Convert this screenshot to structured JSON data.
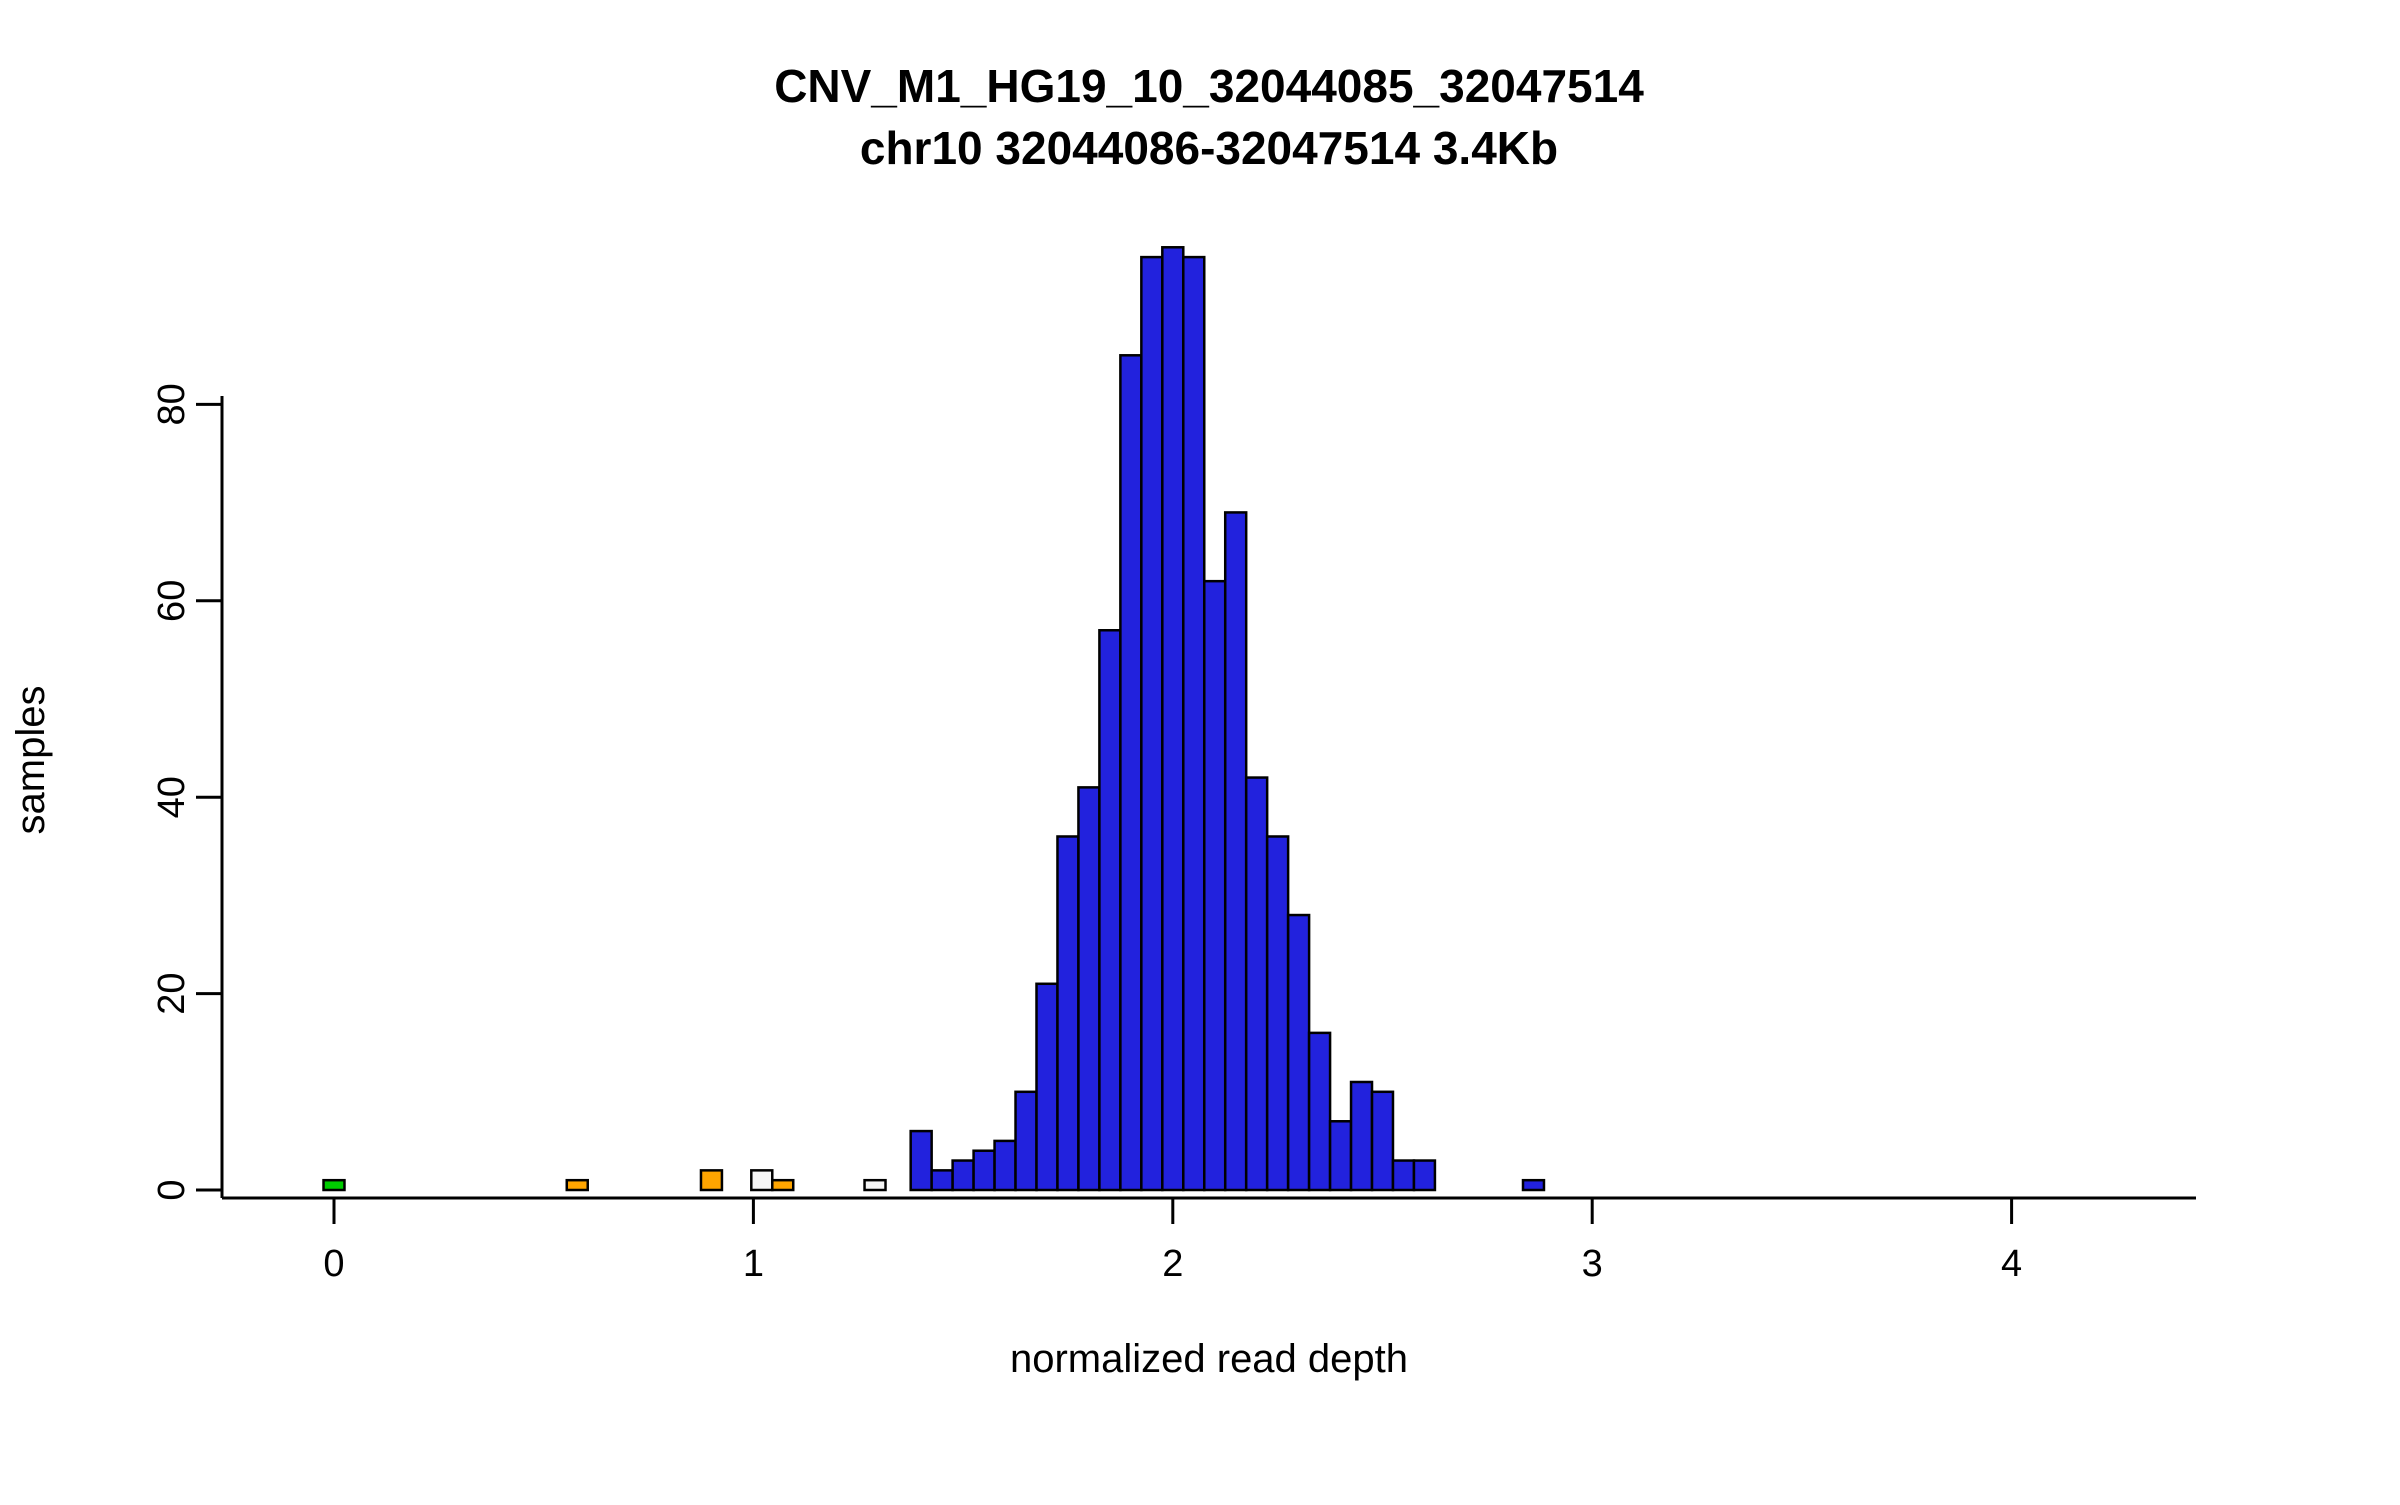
{
  "chart_data": {
    "type": "bar",
    "title": "CNV_M1_HG19_10_32044085_32047514",
    "subtitle": "chr10 32044086-32047514 3.4Kb",
    "xlabel": "normalized read depth",
    "ylabel": "samples",
    "x_ticks": [
      0,
      1,
      2,
      3,
      4
    ],
    "y_ticks": [
      0,
      20,
      40,
      60,
      80
    ],
    "xlim": [
      -0.27,
      4.44
    ],
    "ylim": [
      0,
      96
    ],
    "bin_width": 0.05,
    "grid": false,
    "legend": "none",
    "colors": {
      "blue": "#2222dd",
      "orange": "#ffa500",
      "green": "#00cd00",
      "white": "#f5f5f5",
      "border": "#000000"
    },
    "bars": [
      {
        "x": 0.0,
        "h": 1,
        "color": "green"
      },
      {
        "x": 0.58,
        "h": 1,
        "color": "orange"
      },
      {
        "x": 0.9,
        "h": 2,
        "color": "orange"
      },
      {
        "x": 1.02,
        "h": 2,
        "color": "white"
      },
      {
        "x": 1.07,
        "h": 1,
        "color": "orange"
      },
      {
        "x": 1.29,
        "h": 1,
        "color": "white"
      },
      {
        "x": 1.4,
        "h": 6,
        "color": "blue"
      },
      {
        "x": 1.45,
        "h": 2,
        "color": "blue"
      },
      {
        "x": 1.5,
        "h": 3,
        "color": "blue"
      },
      {
        "x": 1.55,
        "h": 4,
        "color": "blue"
      },
      {
        "x": 1.6,
        "h": 5,
        "color": "blue"
      },
      {
        "x": 1.65,
        "h": 10,
        "color": "blue"
      },
      {
        "x": 1.7,
        "h": 21,
        "color": "blue"
      },
      {
        "x": 1.75,
        "h": 36,
        "color": "blue"
      },
      {
        "x": 1.8,
        "h": 41,
        "color": "blue"
      },
      {
        "x": 1.85,
        "h": 57,
        "color": "blue"
      },
      {
        "x": 1.9,
        "h": 85,
        "color": "blue"
      },
      {
        "x": 1.95,
        "h": 95,
        "color": "blue"
      },
      {
        "x": 2.0,
        "h": 96,
        "color": "blue"
      },
      {
        "x": 2.05,
        "h": 95,
        "color": "blue"
      },
      {
        "x": 2.1,
        "h": 62,
        "color": "blue"
      },
      {
        "x": 2.15,
        "h": 69,
        "color": "blue"
      },
      {
        "x": 2.2,
        "h": 42,
        "color": "blue"
      },
      {
        "x": 2.25,
        "h": 36,
        "color": "blue"
      },
      {
        "x": 2.3,
        "h": 28,
        "color": "blue"
      },
      {
        "x": 2.35,
        "h": 16,
        "color": "blue"
      },
      {
        "x": 2.4,
        "h": 7,
        "color": "blue"
      },
      {
        "x": 2.45,
        "h": 11,
        "color": "blue"
      },
      {
        "x": 2.5,
        "h": 10,
        "color": "blue"
      },
      {
        "x": 2.55,
        "h": 3,
        "color": "blue"
      },
      {
        "x": 2.6,
        "h": 3,
        "color": "blue"
      },
      {
        "x": 2.86,
        "h": 1,
        "color": "blue"
      }
    ]
  }
}
